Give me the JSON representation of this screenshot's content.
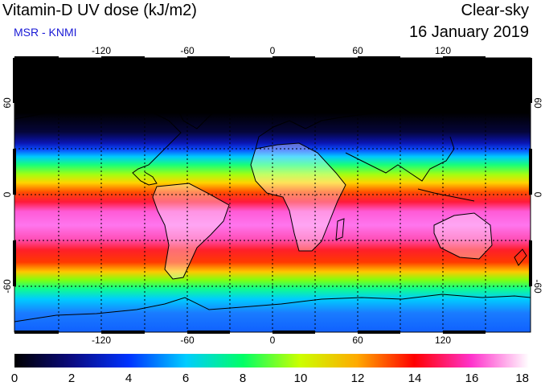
{
  "header": {
    "title": "Vitamin-D UV dose (kJ/m2)",
    "source": "MSR - KNMI",
    "sky_condition": "Clear-sky",
    "date": "16 January 2019"
  },
  "map": {
    "lon_ticks": [
      "-120",
      "-60",
      "0",
      "60",
      "120"
    ],
    "lat_ticks_left": [
      "60",
      "0",
      "-60"
    ],
    "lat_ticks_right": [
      "60",
      "0",
      "-60"
    ]
  },
  "colorbar": {
    "labels": [
      "0",
      "2",
      "4",
      "6",
      "8",
      "10",
      "12",
      "14",
      "16",
      "18"
    ],
    "colors": [
      "#000000",
      "#0a0a80",
      "#0033ff",
      "#00ccff",
      "#00ff66",
      "#ccff00",
      "#ffaa00",
      "#ff0000",
      "#ff33cc",
      "#ffffff"
    ]
  }
}
